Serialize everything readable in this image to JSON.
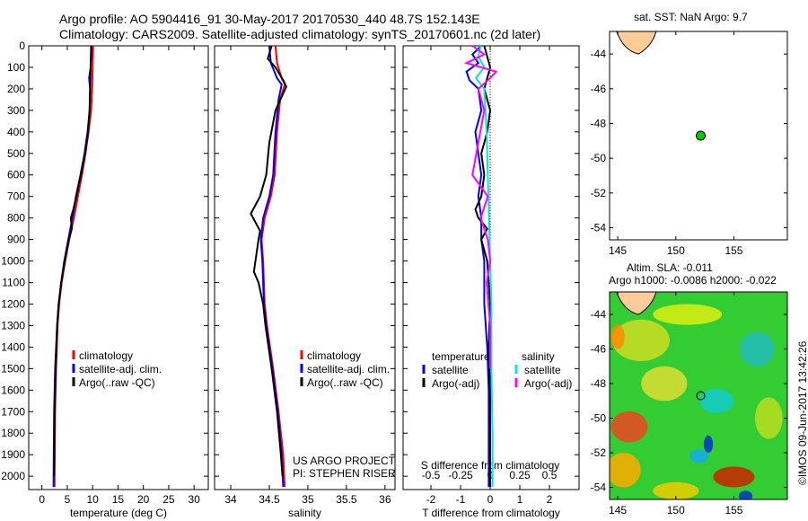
{
  "title_line1": "Argo profile: AO 5904416_91 30-May-2017 20170530_440 48.7S 152.143E",
  "title_line2": "Climatology: CARS2009. Satellite-adjusted climatology: synTS_20170601.nc (2d later)",
  "credit": "©IMOS 09-Jun-2017 13:42:26",
  "project": "US ARGO PROJECT",
  "pi": "PI: STEPHEN RISER",
  "colors": {
    "climatology": "#ff0000",
    "satellite": "#0000ff",
    "argo": "#000000",
    "sal_satellite": "#00e5e5",
    "sal_argo": "#ff00ff",
    "dot": "#00cc00",
    "land": "#ffcc99"
  },
  "chart_data": [
    {
      "type": "line",
      "xlabel": "temperature (deg C)",
      "ylabel": "",
      "xticks": [
        0,
        5,
        10,
        15,
        20,
        25,
        30
      ],
      "xlim": [
        -2.6,
        32.8
      ],
      "yticks": [
        0,
        100,
        200,
        300,
        400,
        500,
        600,
        700,
        800,
        900,
        1000,
        1100,
        1200,
        1300,
        1400,
        1500,
        1600,
        1700,
        1800,
        1900,
        2000
      ],
      "ylim": [
        0,
        2062
      ],
      "legend": [
        "climatology",
        "satellite-adj. clim.",
        "Argo(..raw -QC)"
      ],
      "series": [
        {
          "name": "climatology",
          "color": "#ff0000",
          "depth": [
            0,
            100,
            200,
            300,
            400,
            500,
            600,
            700,
            800,
            900,
            1000,
            1100,
            1200,
            1300,
            1500,
            1700,
            2000,
            2050
          ],
          "values": [
            10.1,
            10,
            9.9,
            9.7,
            9.2,
            8.6,
            7.9,
            7.1,
            6.3,
            5.4,
            4.6,
            3.9,
            3.4,
            3.1,
            2.8,
            2.6,
            2.5,
            2.5
          ]
        },
        {
          "name": "satellite-adj. clim.",
          "color": "#0000ff",
          "depth": [
            0,
            100,
            150,
            200,
            300,
            400,
            500,
            600,
            700,
            800,
            900,
            1000,
            1100,
            1200,
            1300,
            1500,
            1700,
            2000,
            2050
          ],
          "values": [
            9.8,
            9.6,
            9.3,
            9.5,
            9.4,
            9,
            8.4,
            7.6,
            6.7,
            6,
            5.2,
            4.4,
            3.8,
            3.3,
            3.0,
            2.6,
            2.4,
            2.3,
            2.3
          ]
        },
        {
          "name": "Argo(..raw -QC)",
          "color": "#000000",
          "depth": [
            0,
            100,
            200,
            300,
            400,
            500,
            600,
            700,
            760,
            800,
            850,
            900,
            1000,
            1100,
            1200,
            1300,
            1500,
            1700,
            2000
          ],
          "values": [
            9.7,
            9.6,
            9.5,
            9.4,
            9.1,
            8.5,
            7.7,
            6.8,
            6.2,
            5.7,
            5.9,
            5.3,
            4.5,
            3.8,
            3.3,
            3.0,
            2.7,
            2.5,
            2.4
          ]
        }
      ]
    },
    {
      "type": "line",
      "xlabel": "salinity",
      "xticks": [
        34,
        34.5,
        35,
        35.5,
        36
      ],
      "xlim": [
        33.79,
        36.13
      ],
      "ylim": [
        0,
        2062
      ],
      "legend": [
        "climatology",
        "satellite-adj. clim.",
        "Argo(..raw -QC)"
      ],
      "series": [
        {
          "name": "climatology",
          "color": "#ff0000",
          "depth": [
            0,
            80,
            150,
            180,
            250,
            400,
            600,
            700,
            800,
            900,
            1000,
            1100,
            1200,
            1300,
            1500,
            1700,
            1900,
            2050
          ],
          "values": [
            34.58,
            34.6,
            34.66,
            34.7,
            34.64,
            34.6,
            34.57,
            34.52,
            34.44,
            34.4,
            34.42,
            34.43,
            34.44,
            34.47,
            34.55,
            34.62,
            34.68,
            34.7
          ]
        },
        {
          "name": "satellite-adj. clim.",
          "color": "#0000ff",
          "depth": [
            0,
            80,
            150,
            180,
            250,
            400,
            600,
            700,
            800,
            900,
            1000,
            1100,
            1200,
            1300,
            1500,
            1700,
            1900,
            2050
          ],
          "values": [
            34.5,
            34.52,
            34.6,
            34.66,
            34.62,
            34.58,
            34.55,
            34.5,
            34.42,
            34.39,
            34.41,
            34.42,
            34.43,
            34.46,
            34.54,
            34.61,
            34.66,
            34.68
          ]
        },
        {
          "name": "Argo(..raw -QC)",
          "color": "#000000",
          "depth": [
            0,
            60,
            100,
            160,
            190,
            300,
            450,
            600,
            700,
            780,
            820,
            860,
            900,
            1000,
            1050,
            1100,
            1200,
            1300,
            1500,
            1700,
            1900,
            2000
          ],
          "values": [
            34.53,
            34.48,
            34.58,
            34.68,
            34.72,
            34.58,
            34.5,
            34.46,
            34.38,
            34.26,
            34.32,
            34.38,
            34.36,
            34.32,
            34.3,
            34.36,
            34.42,
            34.45,
            34.53,
            34.6,
            34.65,
            34.67
          ]
        }
      ]
    },
    {
      "type": "line",
      "xlabel": "T difference from climatology",
      "x2label": "S difference from climatology",
      "xticks": [
        -2,
        -1,
        0,
        1,
        2
      ],
      "x2ticks": [
        -0.5,
        -0.25,
        0,
        0.25,
        0.5
      ],
      "xlim": [
        -2.94,
        3.0
      ],
      "ylim": [
        0,
        2062
      ],
      "legend_groups": [
        {
          "title": "temperature",
          "items": [
            "satellite",
            "Argo(-adj)"
          ]
        },
        {
          "title": "salinity",
          "items": [
            "satellite",
            "Argo(-adj)"
          ]
        }
      ],
      "series": [
        {
          "name": "temperature satellite",
          "color": "#0000ff",
          "depth": [
            0,
            40,
            80,
            120,
            160,
            200,
            300,
            400,
            500,
            600,
            700,
            800,
            900,
            1000,
            1200,
            1400,
            1600,
            1800,
            2050
          ],
          "values": [
            -0.3,
            -0.6,
            -0.4,
            -0.8,
            -0.7,
            -0.4,
            -0.3,
            -0.5,
            -0.4,
            -0.3,
            -0.4,
            -0.3,
            -0.3,
            -0.2,
            -0.2,
            -0.1,
            -0.05,
            -0.05,
            -0.05
          ]
        },
        {
          "name": "temperature Argo(-adj)",
          "color": "#000000",
          "depth": [
            0,
            50,
            100,
            200,
            300,
            400,
            500,
            600,
            700,
            760,
            800,
            850,
            900,
            1000,
            1200,
            1400,
            1600,
            1800,
            2050
          ],
          "values": [
            -0.2,
            -0.1,
            0,
            -0.2,
            0,
            -0.1,
            -0.3,
            -0.2,
            -0.3,
            -0.5,
            -0.4,
            -0.1,
            -0.3,
            -0.1,
            0,
            -0.05,
            0,
            0,
            0
          ]
        },
        {
          "name": "salinity satellite",
          "color": "#00e5e5",
          "depth": [
            0,
            50,
            100,
            150,
            200,
            300,
            400,
            600,
            800,
            1000,
            1200,
            1500,
            1800,
            2050
          ],
          "values": [
            -0.08,
            -0.1,
            -0.05,
            -0.12,
            -0.05,
            -0.04,
            -0.03,
            -0.02,
            -0.01,
            0,
            0.01,
            0.01,
            0.02,
            0.02
          ]
        },
        {
          "name": "salinity Argo(-adj)",
          "color": "#ff00ff",
          "depth": [
            0,
            40,
            80,
            120,
            150,
            200,
            300,
            450,
            600,
            700,
            800,
            900,
            1000,
            1100,
            1300,
            1500
          ],
          "values": [
            -0.15,
            -0.05,
            -0.2,
            0.05,
            0,
            -0.1,
            -0.05,
            -0.1,
            -0.15,
            -0.02,
            -0.08,
            -0.02,
            0,
            -0.03,
            0,
            0
          ]
        }
      ]
    },
    {
      "type": "scatter",
      "title": "sat. SST: NaN Argo: 9.7",
      "xticks": [
        145,
        150,
        155
      ],
      "yticks": [
        -44,
        -46,
        -48,
        -50,
        -52,
        -54
      ],
      "xlim": [
        144.3,
        159.6
      ],
      "ylim": [
        -54.7,
        -42.7
      ],
      "points": [
        {
          "lon": 152.143,
          "lat": -48.7
        }
      ]
    },
    {
      "type": "heatmap",
      "title_line1": "Altim. SLA: -0.011",
      "title_line2": "Argo h1000: -0.0086 h2000: -0.022",
      "xticks": [
        145,
        150,
        155
      ],
      "yticks": [
        -44,
        -46,
        -48,
        -50,
        -52,
        -54
      ],
      "xlim": [
        144.3,
        159.6
      ],
      "ylim": [
        -54.7,
        -42.7
      ],
      "points": [
        {
          "lon": 152.143,
          "lat": -48.7
        }
      ]
    }
  ]
}
